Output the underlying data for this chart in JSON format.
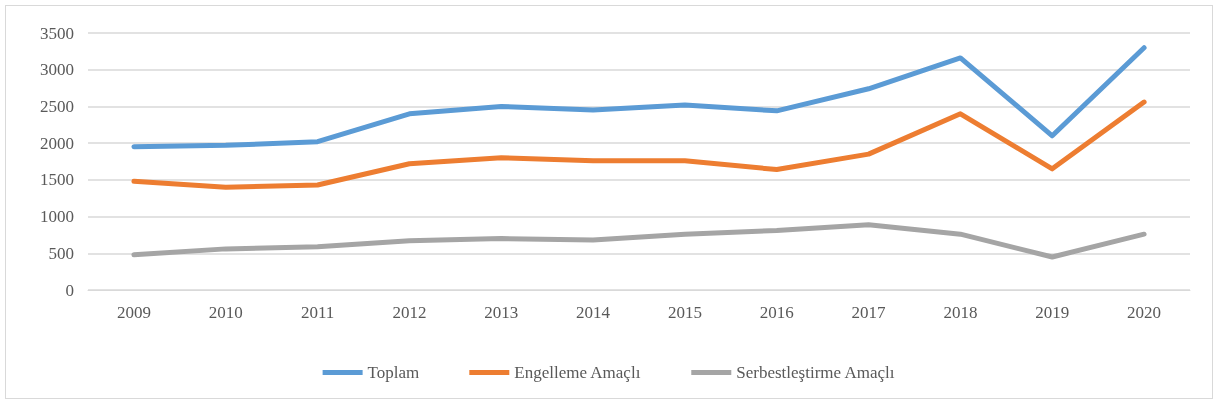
{
  "chart_data": {
    "type": "line",
    "categories": [
      "2009",
      "2010",
      "2011",
      "2012",
      "2013",
      "2014",
      "2015",
      "2016",
      "2017",
      "2018",
      "2019",
      "2020"
    ],
    "series": [
      {
        "name": "Toplam",
        "color": "#5b9bd5",
        "values": [
          1950,
          1970,
          2020,
          2400,
          2500,
          2450,
          2520,
          2440,
          2740,
          3160,
          2100,
          3300
        ]
      },
      {
        "name": "Engelleme Amaçlı",
        "color": "#ed7d31",
        "values": [
          1480,
          1400,
          1430,
          1720,
          1800,
          1760,
          1760,
          1640,
          1850,
          2400,
          1650,
          2560
        ]
      },
      {
        "name": "Serbestleştirme Amaçlı",
        "color": "#a5a5a5",
        "values": [
          480,
          560,
          590,
          670,
          700,
          680,
          760,
          810,
          890,
          760,
          450,
          760
        ]
      }
    ],
    "ylim": [
      0,
      3500
    ],
    "yticks": [
      0,
      500,
      1000,
      1500,
      2000,
      2500,
      3000,
      3500
    ],
    "grid": "y",
    "legend": "bottom",
    "marker": "none",
    "line_style": "solid"
  }
}
